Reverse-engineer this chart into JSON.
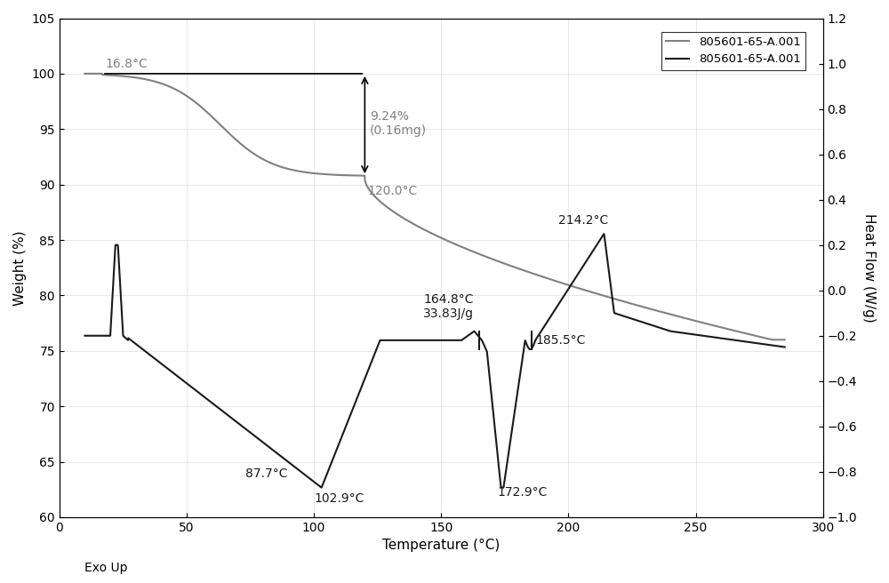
{
  "xlabel": "Temperature (°C)",
  "ylabel_left": "Weight (%)",
  "ylabel_right": "Heat Flow (W/g)",
  "xlim": [
    0,
    300
  ],
  "ylim_left": [
    60,
    105
  ],
  "ylim_right": [
    -1.0,
    1.2
  ],
  "legend_label1": "805601-65-A.001",
  "legend_label2": "805601-65-A.001",
  "exo_label": "Exo Up",
  "tga_color": "#808080",
  "dsc_color": "#1a1a1a",
  "background_color": "#ffffff"
}
